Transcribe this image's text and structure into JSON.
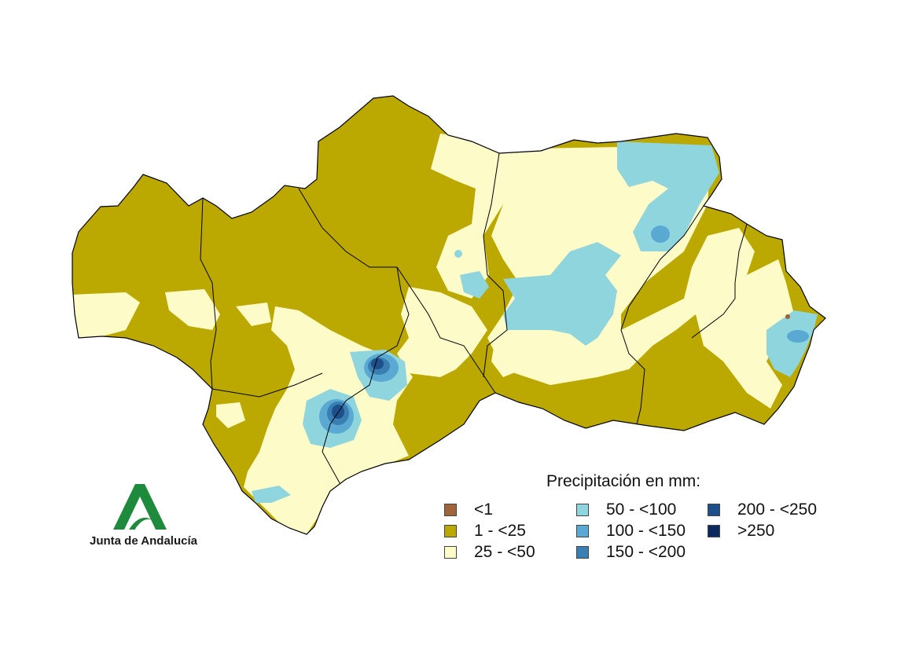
{
  "legend": {
    "title": "Precipitación en mm:",
    "items": [
      {
        "label": "<1",
        "color": "#a0643a"
      },
      {
        "label": "1 - <25",
        "color": "#bba800"
      },
      {
        "label": "25 - <50",
        "color": "#fdfbc8"
      },
      {
        "label": "50 - <100",
        "color": "#8fd5de"
      },
      {
        "label": "100 - <150",
        "color": "#5aa9d3"
      },
      {
        "label": "150 - <200",
        "color": "#3a7fb2"
      },
      {
        "label": "200 - <250",
        "color": "#1c4f8c"
      },
      {
        "label": ">250",
        "color": "#0b2a5e"
      }
    ]
  },
  "logo": {
    "text": "Junta de Andalucía",
    "color": "#1e8a3c",
    "icon": "junta-andalucia-a-logo-icon"
  },
  "colors": {
    "border": "#000000",
    "background": "#ffffff"
  }
}
